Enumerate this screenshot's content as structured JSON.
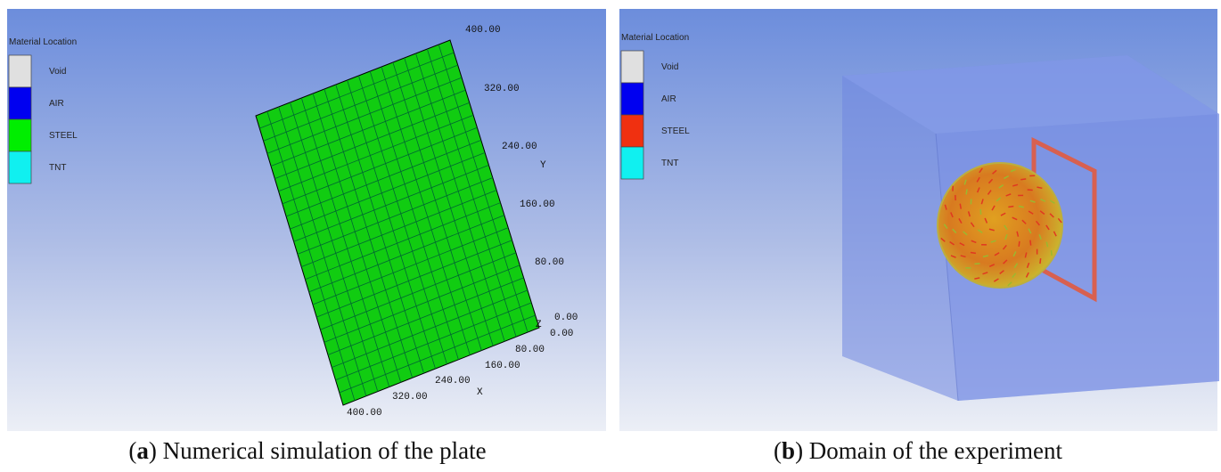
{
  "panels": [
    {
      "legend_title": "Material Location",
      "legend": [
        "Void",
        "AIR",
        "STEEL",
        "TNT"
      ],
      "y_axis_label": "Y",
      "z_axis_label": "Z",
      "x_axis_label": "X",
      "y_ticks": [
        "400.00",
        "320.00",
        "240.00",
        "160.00",
        "80.00",
        "0.00"
      ],
      "x_ticks": [
        "0.00",
        "80.00",
        "160.00",
        "240.00",
        "320.00",
        "400.00"
      ],
      "caption": {
        "open": "(",
        "label": "a",
        "text": ") Numerical simulation of the plate"
      }
    },
    {
      "legend_title": "Material Location",
      "legend": [
        "Void",
        "AIR",
        "STEEL",
        "TNT"
      ],
      "caption": {
        "open": "(",
        "label": "b",
        "text": ") Domain of the experiment"
      }
    }
  ]
}
